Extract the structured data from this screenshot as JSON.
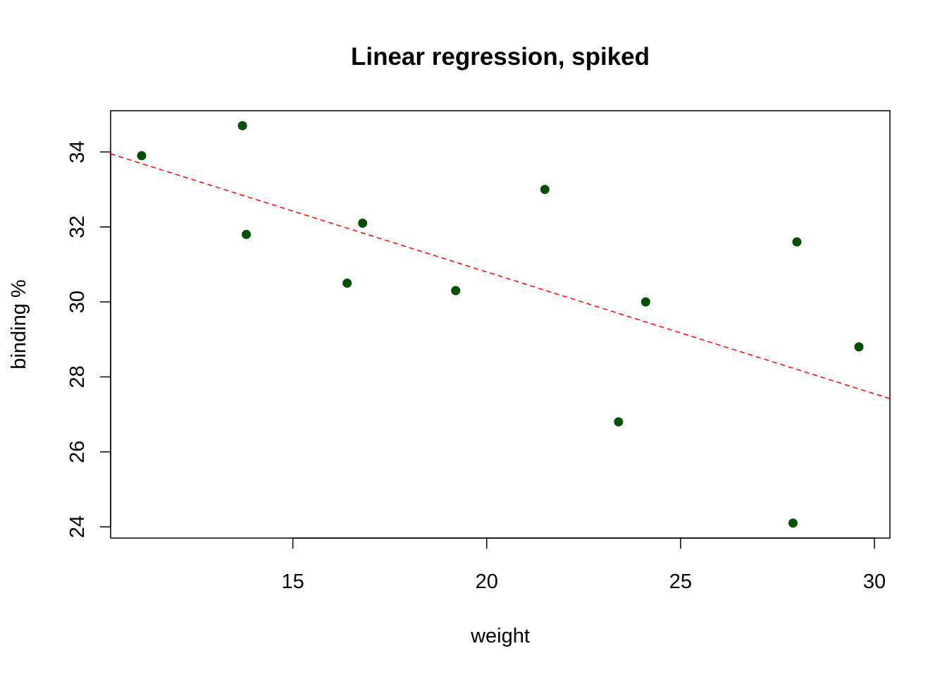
{
  "chart_data": {
    "type": "scatter",
    "title": "Linear regression, spiked",
    "xlabel": "weight",
    "ylabel": "binding %",
    "xlim": [
      10.3,
      30.4
    ],
    "ylim": [
      23.7,
      35.1
    ],
    "xticks": [
      15,
      20,
      25,
      30
    ],
    "yticks": [
      24,
      26,
      28,
      30,
      32,
      34
    ],
    "grid": false,
    "legend": "none",
    "points_color": "#005000",
    "line_color": "#ff0000",
    "series": [
      {
        "x": [
          11.1,
          13.7,
          13.8,
          16.4,
          16.8,
          19.2,
          21.5,
          23.4,
          24.1,
          27.9,
          28.0,
          29.6
        ],
        "y": [
          33.9,
          34.7,
          31.8,
          30.5,
          32.1,
          30.3,
          33.0,
          26.8,
          30.0,
          24.1,
          31.6,
          28.8
        ]
      }
    ],
    "regression_line": {
      "style": "dashed",
      "x": [
        10.3,
        30.4
      ],
      "y": [
        33.95,
        27.42
      ]
    }
  }
}
